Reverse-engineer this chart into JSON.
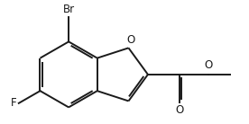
{
  "bg_color": "#ffffff",
  "line_color": "#1a1a1a",
  "line_width": 1.4,
  "font_size": 8.5,
  "label_Br": "Br",
  "label_F": "F",
  "label_O_furan": "O",
  "label_O_ester": "O",
  "label_O_carbonyl": "O",
  "figsize": [
    2.76,
    1.38
  ],
  "dpi": 100,
  "bl": 1.0
}
